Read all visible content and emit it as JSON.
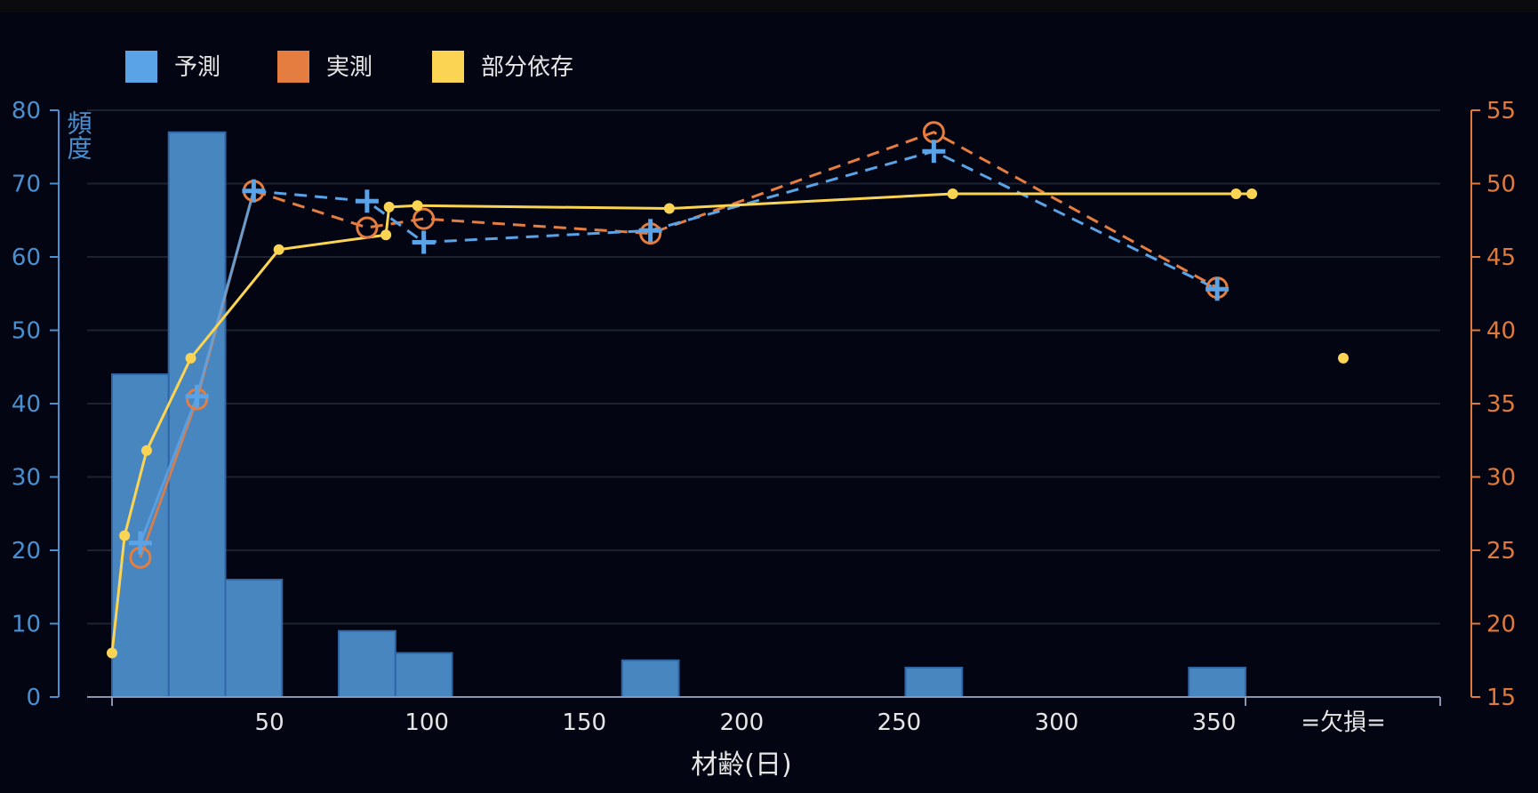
{
  "chart_data": {
    "type": "bar+line",
    "xlabel": "材齢(日)",
    "ylabel_left": "頻度",
    "x_ticks": [
      50,
      100,
      150,
      200,
      250,
      300,
      350
    ],
    "x_extra_tick": "=欠損=",
    "x_range": [
      0,
      425
    ],
    "y_left_ticks": [
      0,
      10,
      20,
      30,
      40,
      50,
      60,
      70,
      80
    ],
    "y_left_range": [
      0,
      80
    ],
    "y_right_ticks": [
      15,
      20,
      25,
      30,
      35,
      40,
      45,
      50,
      55
    ],
    "y_right_range": [
      15,
      55
    ],
    "grid": "horizontal",
    "legend": {
      "position": "top-left",
      "items": [
        {
          "label": "予測",
          "color": "#5aa3e6"
        },
        {
          "label": "実測",
          "color": "#e57d40"
        },
        {
          "label": "部分依存",
          "color": "#fcd453"
        }
      ]
    },
    "histogram": {
      "color": "#4886c0",
      "bins": [
        {
          "x0": 0,
          "x1": 18,
          "count": 44
        },
        {
          "x0": 18,
          "x1": 36,
          "count": 77
        },
        {
          "x0": 36,
          "x1": 54,
          "count": 16
        },
        {
          "x0": 72,
          "x1": 90,
          "count": 9
        },
        {
          "x0": 90,
          "x1": 108,
          "count": 6
        },
        {
          "x0": 162,
          "x1": 180,
          "count": 5
        },
        {
          "x0": 252,
          "x1": 270,
          "count": 4
        },
        {
          "x0": 342,
          "x1": 360,
          "count": 4
        }
      ]
    },
    "series": [
      {
        "name": "予測",
        "color": "#5aa3e6",
        "style": "dashed",
        "marker": "plus",
        "points": [
          [
            9,
            25.5
          ],
          [
            27,
            35.5
          ],
          [
            45,
            49.5
          ],
          [
            81,
            48.8
          ],
          [
            99,
            46.0
          ],
          [
            171,
            46.8
          ],
          [
            261,
            52.2
          ],
          [
            351,
            42.8
          ]
        ]
      },
      {
        "name": "実測",
        "color": "#e57d40",
        "style": "dashed",
        "marker": "circle",
        "points": [
          [
            9,
            24.5
          ],
          [
            27,
            35.3
          ],
          [
            45,
            49.5
          ],
          [
            81,
            47.0
          ],
          [
            99,
            47.6
          ],
          [
            171,
            46.6
          ],
          [
            261,
            53.5
          ],
          [
            351,
            42.9
          ]
        ]
      },
      {
        "name": "部分依存",
        "color": "#fcd453",
        "style": "solid",
        "marker": "dot",
        "points": [
          [
            0,
            18.0
          ],
          [
            4,
            26.0
          ],
          [
            11,
            31.8
          ],
          [
            25,
            38.1
          ],
          [
            53,
            45.5
          ],
          [
            87,
            46.5
          ],
          [
            88,
            48.4
          ],
          [
            97,
            48.5
          ],
          [
            177,
            48.3
          ],
          [
            267,
            49.3
          ],
          [
            357,
            49.3
          ],
          [
            362,
            49.3
          ]
        ],
        "missing_value": 38.1
      }
    ]
  }
}
